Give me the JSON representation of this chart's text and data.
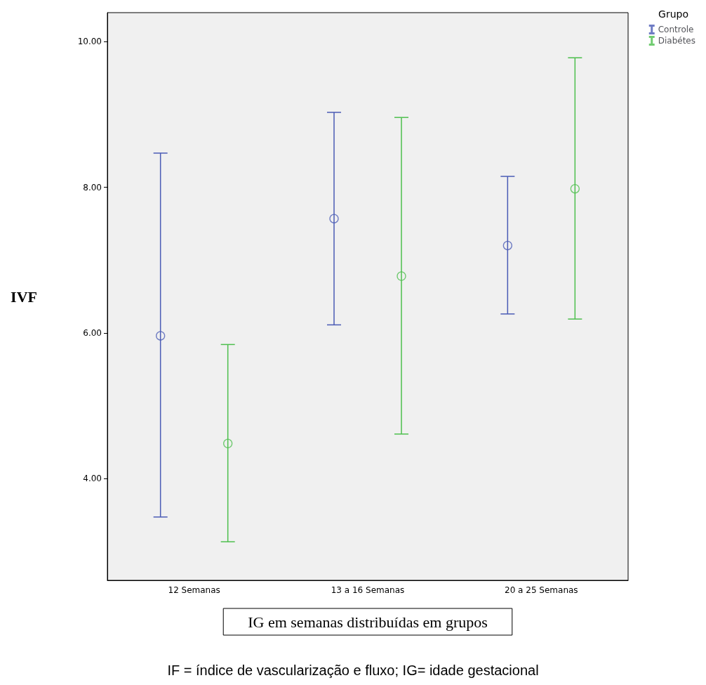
{
  "chart_data": {
    "type": "scatter",
    "xlabel": "IG em semanas distribuídas em grupos",
    "ylabel": "IVF",
    "legend_title": "Grupo",
    "annotations": [
      "IF = índice de vascularização e fluxo; IG= idade gestacional"
    ],
    "categories": [
      "12 Semanas",
      "13 a 16 Semanas",
      "20 a 25 Semanas"
    ],
    "series": [
      {
        "name": "Controle",
        "color": "#4a5bb5",
        "values": [
          5.96,
          7.57,
          7.2
        ],
        "errors": [
          [
            3.47,
            8.47
          ],
          [
            6.11,
            9.03
          ],
          [
            6.26,
            8.15
          ]
        ]
      },
      {
        "name": "Diabétes",
        "color": "#4dbf4d",
        "values": [
          4.48,
          6.78,
          7.98
        ],
        "errors": [
          [
            3.13,
            5.84
          ],
          [
            4.61,
            8.96
          ],
          [
            6.19,
            9.78
          ]
        ]
      }
    ],
    "ylim": [
      2.6,
      10.4
    ],
    "yticks": [
      {
        "value": 4,
        "label": "4.00"
      },
      {
        "value": 6,
        "label": "6.00"
      },
      {
        "value": 8,
        "label": "8.00"
      },
      {
        "value": 10,
        "label": "10.00"
      }
    ],
    "grid": false,
    "legend": "top right",
    "marker": "circle"
  }
}
